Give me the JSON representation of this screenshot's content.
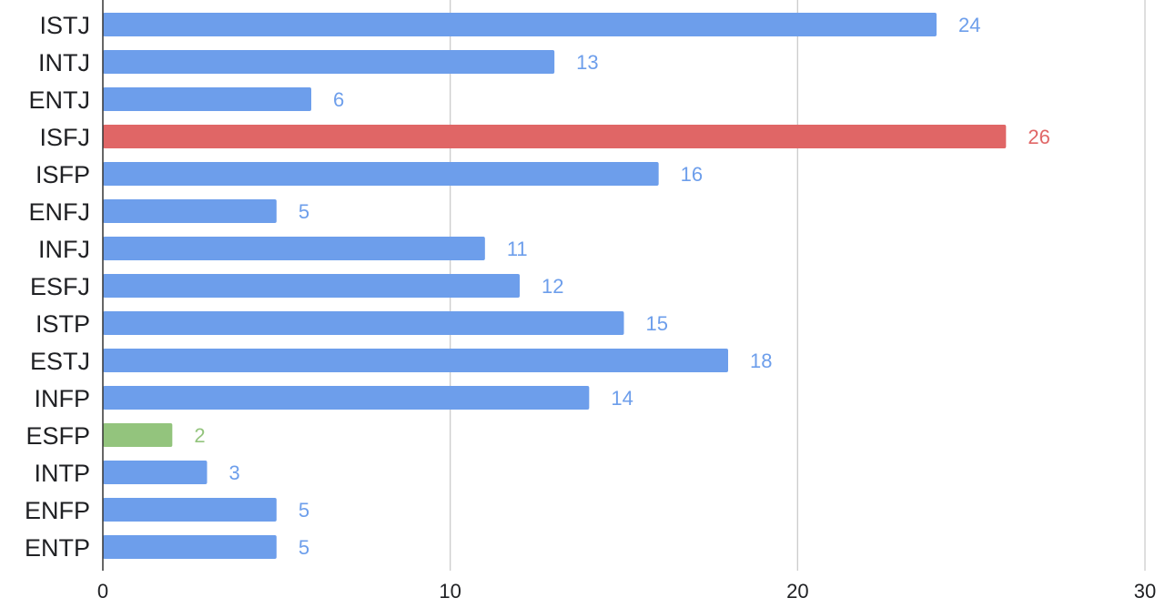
{
  "chart_data": {
    "type": "bar",
    "orientation": "horizontal",
    "title": "",
    "xlabel": "",
    "ylabel": "",
    "categories": [
      "ISTJ",
      "INTJ",
      "ENTJ",
      "ISFJ",
      "ISFP",
      "ENFJ",
      "INFJ",
      "ESFJ",
      "ISTP",
      "ESTJ",
      "INFP",
      "ESFP",
      "INTP",
      "ENFP",
      "ENTP"
    ],
    "values": [
      24,
      13,
      6,
      26,
      16,
      5,
      11,
      12,
      15,
      18,
      14,
      2,
      3,
      5,
      5
    ],
    "value_labels": [
      "24",
      "13",
      "6",
      "26",
      "16",
      "5",
      "11",
      "12",
      "15",
      "18",
      "14",
      "2",
      "3",
      "5",
      "5"
    ],
    "bar_colors": [
      "#6d9eeb",
      "#6d9eeb",
      "#6d9eeb",
      "#e06666",
      "#6d9eeb",
      "#6d9eeb",
      "#6d9eeb",
      "#6d9eeb",
      "#6d9eeb",
      "#6d9eeb",
      "#6d9eeb",
      "#93c47d",
      "#6d9eeb",
      "#6d9eeb",
      "#6d9eeb"
    ],
    "xlim": [
      0,
      30
    ],
    "x_ticks": [
      0,
      10,
      20,
      30
    ],
    "x_tick_labels": [
      "0",
      "10",
      "20",
      "30"
    ],
    "grid": true,
    "legend": "none"
  },
  "colors": {
    "default_bar": "#6d9eeb",
    "highlight_max": "#e06666",
    "highlight_min": "#93c47d",
    "gridline": "#cccccc",
    "axis": "#333333",
    "text": "#202124"
  }
}
